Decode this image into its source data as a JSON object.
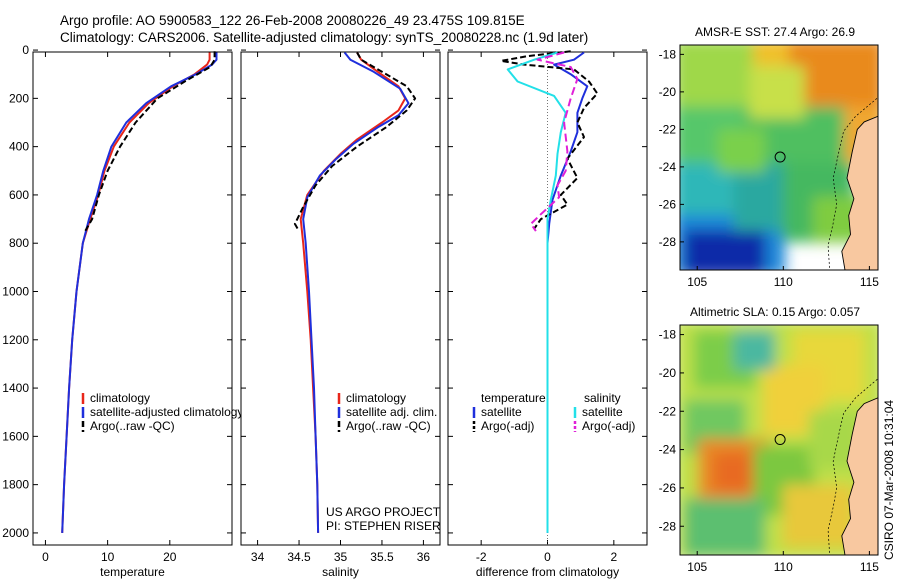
{
  "header": {
    "line1": "Argo profile: AO 5900583_122 26-Feb-2008 20080226_49 23.475S 109.815E",
    "line2": "Climatology: CARS2006. Satellite-adjusted climatology: synTS_20080228.nc (1.9d later)"
  },
  "side_stamp": "CSIRO 07-Mar-2008 10:31:04",
  "colors": {
    "climatology": "#e8261a",
    "satellite": "#1f2fdc",
    "argo": "#000000",
    "satellite_salinity": "#22e0e8",
    "argo_salinity": "#e020d8",
    "land": "#f8c8a0"
  },
  "chart_data": [
    {
      "id": "temperature",
      "type": "line",
      "xlabel": "temperature",
      "ylabel": "",
      "xlim": [
        -2,
        30
      ],
      "ylim": [
        0,
        2050
      ],
      "y_reversed": true,
      "xticks": [
        0,
        10,
        20
      ],
      "yticks": [
        0,
        200,
        400,
        600,
        800,
        1000,
        1200,
        1400,
        1600,
        1800,
        2000
      ],
      "legend": [
        "climatology",
        "satellite-adjusted climatology",
        "Argo(..raw -QC)"
      ],
      "series": [
        {
          "name": "climatology",
          "color": "#e8261a",
          "dash": "",
          "points": [
            [
              26.4,
              10
            ],
            [
              26.4,
              40
            ],
            [
              26.0,
              60
            ],
            [
              24.0,
              100
            ],
            [
              20.5,
              150
            ],
            [
              16.6,
              220
            ],
            [
              13.5,
              300
            ],
            [
              11.0,
              400
            ],
            [
              9.5,
              500
            ],
            [
              8.5,
              600
            ],
            [
              7.2,
              700
            ],
            [
              6.0,
              800
            ],
            [
              5.0,
              1000
            ],
            [
              4.3,
              1200
            ],
            [
              3.8,
              1400
            ],
            [
              3.4,
              1600
            ],
            [
              3.0,
              1800
            ],
            [
              2.7,
              2000
            ]
          ]
        },
        {
          "name": "satellite-adjusted climatology",
          "color": "#1f2fdc",
          "dash": "",
          "points": [
            [
              27.5,
              10
            ],
            [
              27.5,
              40
            ],
            [
              26.8,
              60
            ],
            [
              24.2,
              100
            ],
            [
              20.2,
              150
            ],
            [
              16.2,
              220
            ],
            [
              13.0,
              300
            ],
            [
              10.6,
              400
            ],
            [
              9.3,
              500
            ],
            [
              8.3,
              600
            ],
            [
              7.0,
              700
            ],
            [
              6.0,
              800
            ],
            [
              5.0,
              1000
            ],
            [
              4.3,
              1200
            ],
            [
              3.8,
              1400
            ],
            [
              3.4,
              1600
            ],
            [
              3.0,
              1800
            ],
            [
              2.7,
              2000
            ]
          ]
        },
        {
          "name": "Argo(..raw -QC)",
          "color": "#000000",
          "dash": "6,3",
          "points": [
            [
              27.2,
              5
            ],
            [
              27.2,
              40
            ],
            [
              26.5,
              70
            ],
            [
              22.4,
              130
            ],
            [
              18.0,
              200
            ],
            [
              14.5,
              300
            ],
            [
              12.0,
              400
            ],
            [
              10.0,
              500
            ],
            [
              8.6,
              600
            ],
            [
              7.5,
              700
            ],
            [
              6.4,
              750
            ]
          ]
        }
      ]
    },
    {
      "id": "salinity",
      "type": "line",
      "xlabel": "salinity",
      "ylabel": "",
      "xlim": [
        33.8,
        36.2
      ],
      "ylim": [
        0,
        2050
      ],
      "y_reversed": true,
      "xticks": [
        34,
        34.5,
        35,
        35.5,
        36
      ],
      "yticks": [
        0,
        200,
        400,
        600,
        800,
        1000,
        1200,
        1400,
        1600,
        1800,
        2000
      ],
      "legend": [
        "climatology",
        "satellite adj. clim.",
        "Argo(..raw -QC)"
      ],
      "annotation": [
        "US ARGO PROJECT",
        "PI: STEPHEN RISER"
      ],
      "series": [
        {
          "name": "climatology",
          "color": "#e8261a",
          "dash": "",
          "points": [
            [
              35.2,
              10
            ],
            [
              35.25,
              40
            ],
            [
              35.45,
              90
            ],
            [
              35.7,
              150
            ],
            [
              35.78,
              200
            ],
            [
              35.7,
              250
            ],
            [
              35.5,
              300
            ],
            [
              35.2,
              370
            ],
            [
              35.0,
              430
            ],
            [
              34.8,
              500
            ],
            [
              34.6,
              600
            ],
            [
              34.52,
              700
            ],
            [
              34.55,
              800
            ],
            [
              34.6,
              1000
            ],
            [
              34.64,
              1200
            ],
            [
              34.67,
              1400
            ],
            [
              34.7,
              1600
            ],
            [
              34.72,
              1800
            ],
            [
              34.73,
              2000
            ]
          ]
        },
        {
          "name": "satellite adj. clim.",
          "color": "#1f2fdc",
          "dash": "",
          "points": [
            [
              35.05,
              10
            ],
            [
              35.12,
              40
            ],
            [
              35.4,
              90
            ],
            [
              35.72,
              160
            ],
            [
              35.82,
              220
            ],
            [
              35.7,
              270
            ],
            [
              35.45,
              320
            ],
            [
              35.15,
              390
            ],
            [
              34.95,
              450
            ],
            [
              34.75,
              520
            ],
            [
              34.6,
              610
            ],
            [
              34.55,
              700
            ],
            [
              34.58,
              800
            ],
            [
              34.62,
              1000
            ],
            [
              34.65,
              1200
            ],
            [
              34.68,
              1400
            ],
            [
              34.7,
              1600
            ],
            [
              34.72,
              1800
            ],
            [
              34.73,
              2000
            ]
          ]
        },
        {
          "name": "Argo(..raw -QC)",
          "color": "#000000",
          "dash": "6,3",
          "points": [
            [
              35.2,
              10
            ],
            [
              35.25,
              40
            ],
            [
              35.5,
              90
            ],
            [
              35.8,
              150
            ],
            [
              35.9,
              200
            ],
            [
              35.8,
              250
            ],
            [
              35.55,
              320
            ],
            [
              35.2,
              400
            ],
            [
              34.9,
              480
            ],
            [
              34.7,
              560
            ],
            [
              34.55,
              650
            ],
            [
              34.45,
              720
            ],
            [
              34.5,
              750
            ]
          ]
        }
      ]
    },
    {
      "id": "difference",
      "type": "line",
      "xlabel": "difference from climatology",
      "ylabel": "",
      "xlim": [
        -3,
        3
      ],
      "ylim": [
        0,
        2050
      ],
      "y_reversed": true,
      "xticks": [
        -2,
        0,
        2
      ],
      "yticks": [
        0,
        200,
        400,
        600,
        800,
        1000,
        1200,
        1400,
        1600,
        1800,
        2000
      ],
      "legend_columns": [
        {
          "heading": "temperature",
          "entries": [
            "satellite",
            "Argo(-adj)"
          ]
        },
        {
          "heading": "salinity",
          "entries": [
            "satellite",
            "Argo(-adj)"
          ]
        }
      ],
      "series": [
        {
          "name": "satellite (temperature)",
          "color": "#1f2fdc",
          "dash": "",
          "points": [
            [
              1.1,
              10
            ],
            [
              0.8,
              40
            ],
            [
              0.2,
              60
            ],
            [
              0.7,
              100
            ],
            [
              1.2,
              150
            ],
            [
              1.05,
              200
            ],
            [
              0.9,
              260
            ],
            [
              0.9,
              340
            ],
            [
              0.7,
              420
            ],
            [
              0.4,
              520
            ],
            [
              0.15,
              620
            ],
            [
              0.05,
              720
            ],
            [
              0.0,
              800
            ],
            [
              0.0,
              1200
            ],
            [
              0.0,
              1600
            ],
            [
              0.0,
              2000
            ]
          ]
        },
        {
          "name": "Argo(-adj) (temperature)",
          "color": "#000000",
          "dash": "6,3",
          "points": [
            [
              0.7,
              5
            ],
            [
              -0.6,
              25
            ],
            [
              -1.4,
              45
            ],
            [
              -0.7,
              60
            ],
            [
              0.8,
              80
            ],
            [
              1.25,
              130
            ],
            [
              1.5,
              180
            ],
            [
              1.1,
              240
            ],
            [
              0.9,
              300
            ],
            [
              1.1,
              360
            ],
            [
              0.6,
              450
            ],
            [
              0.9,
              530
            ],
            [
              0.4,
              600
            ],
            [
              0.6,
              640
            ],
            [
              -0.2,
              700
            ],
            [
              -0.4,
              740
            ]
          ]
        },
        {
          "name": "satellite (salinity)",
          "color": "#22e0e8",
          "dash": "",
          "points": [
            [
              0.3,
              10
            ],
            [
              -0.4,
              40
            ],
            [
              -1.2,
              80
            ],
            [
              -0.9,
              130
            ],
            [
              0.2,
              190
            ],
            [
              0.55,
              260
            ],
            [
              0.4,
              340
            ],
            [
              0.3,
              430
            ],
            [
              0.25,
              520
            ],
            [
              0.1,
              620
            ],
            [
              0.0,
              700
            ],
            [
              0.0,
              800
            ],
            [
              0.0,
              1200
            ],
            [
              0.0,
              1600
            ],
            [
              0.0,
              2000
            ]
          ]
        },
        {
          "name": "Argo(-adj) (salinity)",
          "color": "#e020d8",
          "dash": "8,4",
          "points": [
            [
              0.5,
              10
            ],
            [
              -0.3,
              40
            ],
            [
              0.7,
              70
            ],
            [
              0.9,
              120
            ],
            [
              0.7,
              200
            ],
            [
              0.5,
              300
            ],
            [
              0.6,
              420
            ],
            [
              0.55,
              500
            ],
            [
              0.3,
              560
            ],
            [
              0.35,
              610
            ],
            [
              -0.2,
              680
            ],
            [
              -0.5,
              720
            ],
            [
              -0.35,
              750
            ]
          ]
        }
      ]
    },
    {
      "id": "sst_map",
      "type": "heatmap",
      "title": "AMSR-E SST: 27.4 Argo: 26.9",
      "xlim": [
        104,
        115.5
      ],
      "ylim": [
        -29.5,
        -17.5
      ],
      "xticks": [
        105,
        110,
        115
      ],
      "yticks": [
        -18,
        -20,
        -22,
        -24,
        -26,
        -28
      ],
      "marker": {
        "lon": 109.815,
        "lat": -23.475
      },
      "palette": "jet (blue low to red high)"
    },
    {
      "id": "sla_map",
      "type": "heatmap",
      "title": "Altimetric SLA: 0.15 Argo: 0.057",
      "xlim": [
        104,
        115.5
      ],
      "ylim": [
        -29.5,
        -17.5
      ],
      "xticks": [
        105,
        110,
        115
      ],
      "yticks": [
        -18,
        -20,
        -22,
        -24,
        -26,
        -28
      ],
      "marker": {
        "lon": 109.815,
        "lat": -23.475
      },
      "palette": "jet (blue low to red high)"
    }
  ]
}
